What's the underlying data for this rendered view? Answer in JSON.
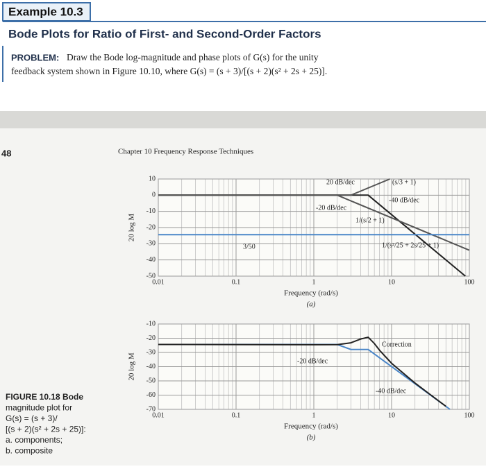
{
  "header": {
    "tag": "Example 10.3",
    "title": "Bode Plots for Ratio of First- and Second-Order Factors",
    "problem_label": "PROBLEM:",
    "problem_lines": [
      "Draw the Bode log-magnitude and phase plots of G(s) for the unity",
      "feedback system shown in Figure 10.10, where G(s) = (s + 3)/[(s + 2)(s² + 2s + 25)]."
    ]
  },
  "page": {
    "number": "48",
    "running_head": "Chapter 10    Frequency Response Techniques"
  },
  "figures": [
    {
      "type": "line",
      "log_x": true,
      "ylabel": "20 log M",
      "xlabel": "Frequency (rad/s)",
      "panel": "(a)",
      "xlim": [
        0.01,
        100
      ],
      "xticks": [
        0.01,
        0.1,
        1,
        10,
        100
      ],
      "ylim": [
        -50,
        10
      ],
      "yticks": [
        10,
        0,
        -10,
        -20,
        -30,
        -40,
        -50
      ],
      "grid": true,
      "annotations": [
        "20 dB/dec",
        "(s/3 + 1)",
        "-40 dB/dec",
        "-20 dB/dec",
        "1/(s/2 + 1)",
        "3/50",
        "1/(s²/25 + 2s/25 + 1)"
      ],
      "series": [
        {
          "color": "#222222",
          "x": [
            0.01,
            5,
            88.9
          ],
          "y": [
            0,
            0,
            -50
          ]
        },
        {
          "color": "#555555",
          "x": [
            0.01,
            3,
            9.49
          ],
          "y": [
            0,
            0,
            10
          ]
        },
        {
          "color": "#555555",
          "x": [
            0.01,
            2,
            100
          ],
          "y": [
            0,
            0,
            -34
          ]
        },
        {
          "color": "#4a86c8",
          "x": [
            0.01,
            100
          ],
          "y": [
            -24.4,
            -24.4
          ]
        }
      ]
    },
    {
      "type": "line",
      "log_x": true,
      "ylabel": "20 log M",
      "xlabel": "Frequency (rad/s)",
      "panel": "(b)",
      "xlim": [
        0.01,
        100
      ],
      "xticks": [
        0.01,
        0.1,
        1,
        10,
        100
      ],
      "ylim": [
        -70,
        -10
      ],
      "yticks": [
        -10,
        -20,
        -30,
        -40,
        -50,
        -60,
        -70
      ],
      "grid": true,
      "annotations": [
        "Correction",
        "-20 dB/dec",
        "-40 dB/dec"
      ],
      "series": [
        {
          "color": "#4a86c8",
          "x": [
            0.01,
            2,
            3,
            5,
            56.4
          ],
          "y": [
            -24.4,
            -24.4,
            -27.9,
            -27.9,
            -70
          ]
        },
        {
          "color": "#222222",
          "x": [
            0.01,
            1,
            2,
            3,
            4,
            5,
            6,
            7,
            10,
            20,
            30,
            50
          ],
          "y": [
            -24.4,
            -24.6,
            -24.5,
            -23.2,
            -20.6,
            -19.3,
            -23.7,
            -28.5,
            -37.6,
            -51.5,
            -58.8,
            -67.9
          ]
        }
      ]
    }
  ],
  "caption": {
    "lines": [
      "FIGURE 10.18  Bode",
      "magnitude plot for",
      "G(s) = (s + 3)/",
      "[(s + 2)(s² + 2s + 25)]:",
      "a. components;",
      "b. composite"
    ]
  }
}
